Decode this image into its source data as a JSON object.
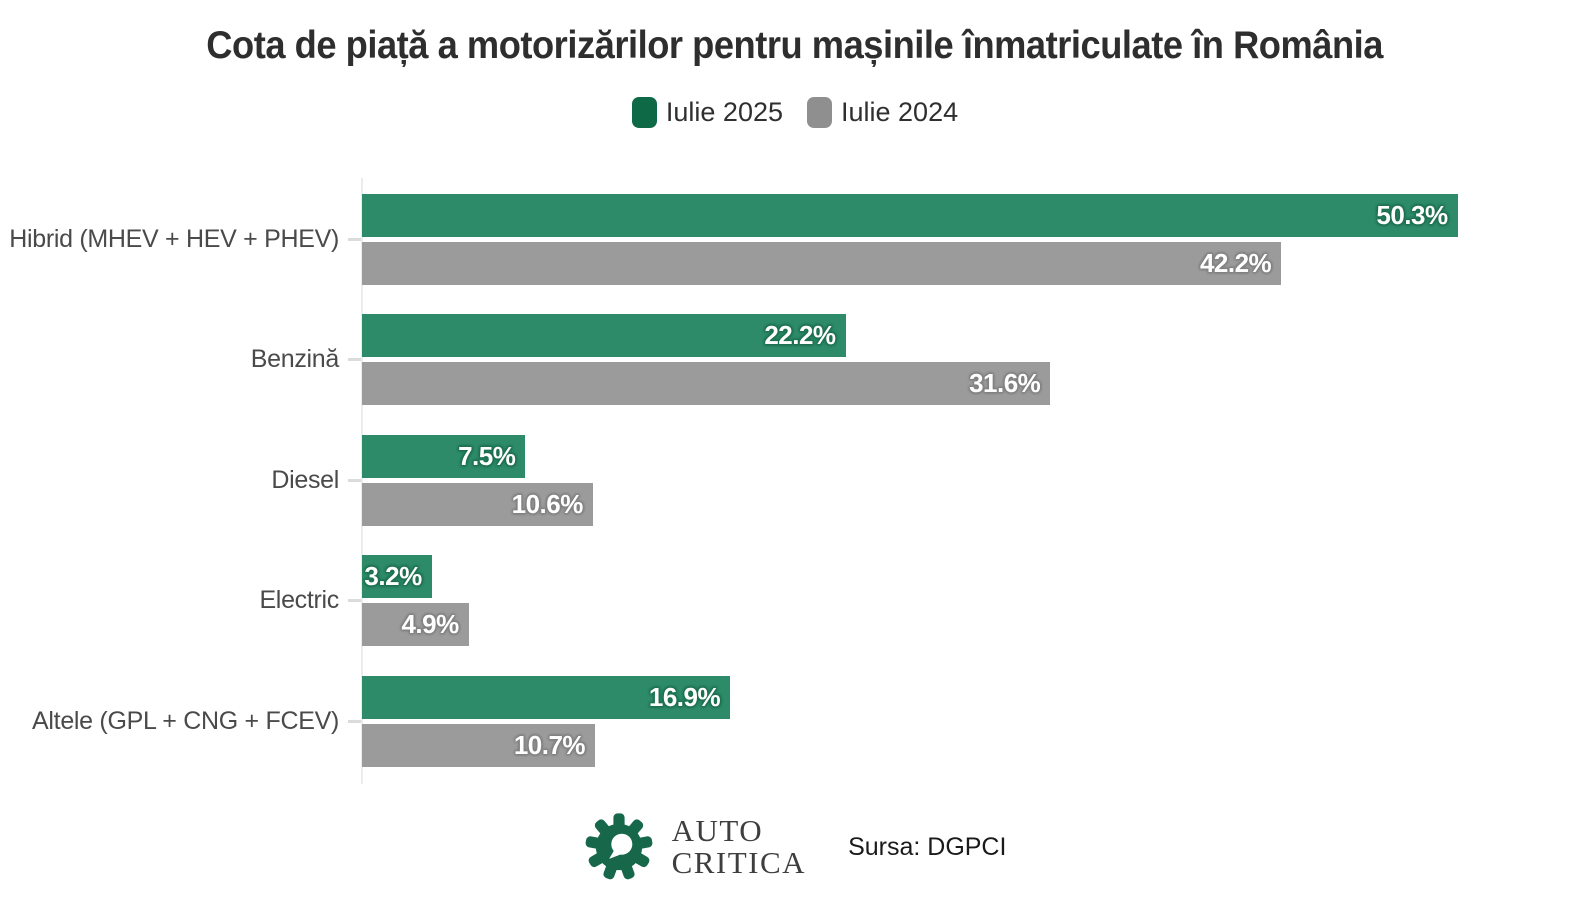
{
  "page": {
    "title": "Cota de piață a motorizărilor pentru mașinile înmatriculate în România"
  },
  "legend": {
    "items": [
      {
        "label": "Iulie 2025",
        "color": "#0E6946"
      },
      {
        "label": "Iulie 2024",
        "color": "#8F8F8F"
      }
    ]
  },
  "chart_data": {
    "type": "bar",
    "orientation": "horizontal",
    "title": "Cota de piață a motorizărilor pentru mașinile înmatriculate în România",
    "categories": [
      "Hibrid (MHEV + HEV + PHEV)",
      "Benzină",
      "Diesel",
      "Electric",
      "Altele (GPL + CNG + FCEV)"
    ],
    "series": [
      {
        "name": "Iulie 2025",
        "color": "#2E8B69",
        "label_halo": "#1E7050",
        "values": [
          50.3,
          22.2,
          7.5,
          3.2,
          16.9
        ]
      },
      {
        "name": "Iulie 2024",
        "color": "#9B9B9B",
        "label_halo": "#818181",
        "values": [
          42.2,
          31.6,
          10.6,
          4.9,
          10.7
        ]
      }
    ],
    "value_suffix": "%",
    "value_labels": "inside-end",
    "xlim": [
      0,
      55
    ],
    "grid": false,
    "legend_position": "top",
    "axis_line_color": "#ECECEC"
  },
  "footer": {
    "logo": {
      "line1": "AUTO",
      "line2": "CRITICA",
      "gear_color": "#17684B"
    },
    "source": "Sursa: DGPCI"
  }
}
